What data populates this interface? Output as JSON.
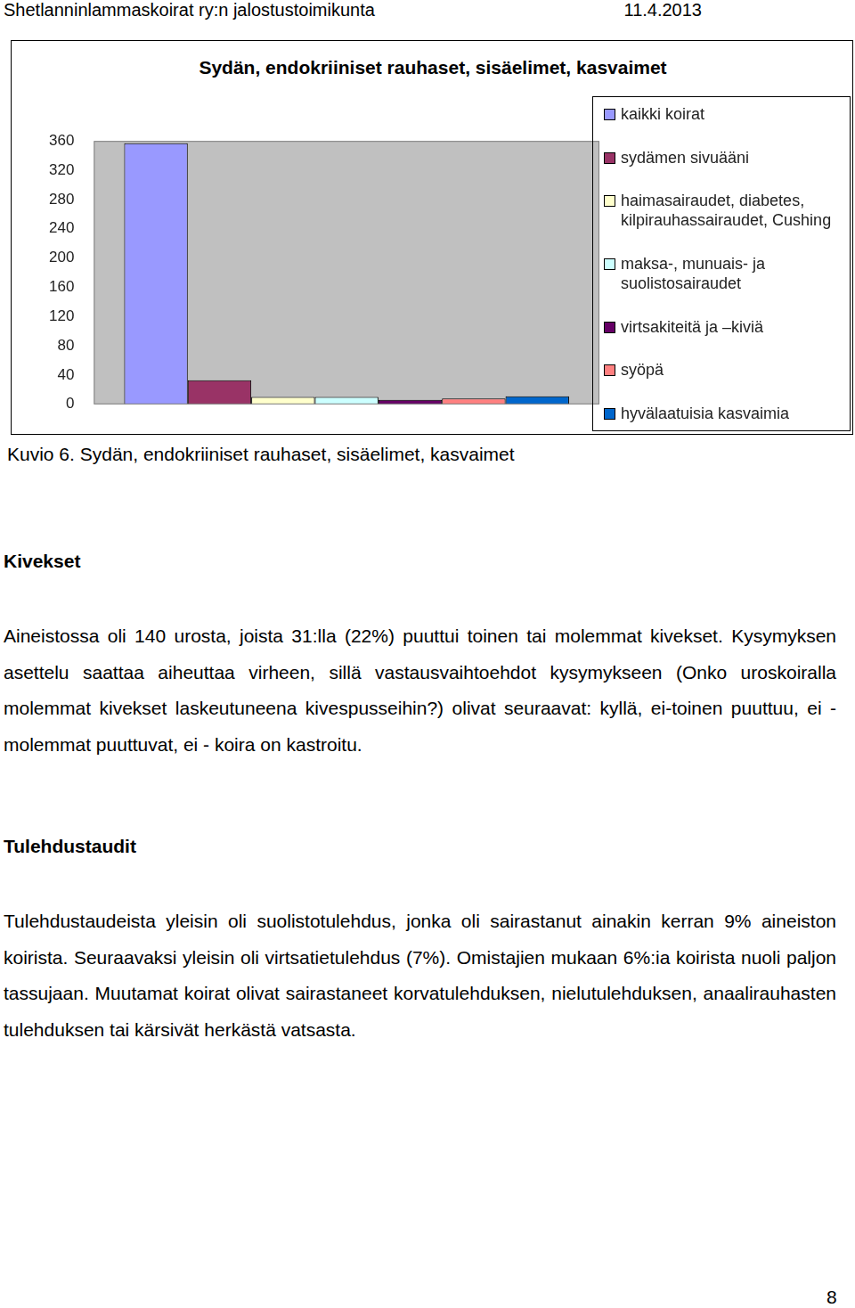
{
  "header": {
    "left": "Shetlanninlammaskoirat ry:n jalostustoimikunta",
    "right": "11.4.2013"
  },
  "chart_data": {
    "type": "bar",
    "title": "Sydän, endokriiniset rauhaset, sisäelimet, kasvaimet",
    "categories": [
      null
    ],
    "series": [
      {
        "name": "kaikki koirat",
        "color": "#9999ff",
        "values": [
          357
        ]
      },
      {
        "name": "sydämen sivuääni",
        "color": "#993366",
        "values": [
          33
        ]
      },
      {
        "name": "haimasairaudet, diabetes, kilpirauhassairaudet, Cushing",
        "color": "#ffffcc",
        "values": [
          10
        ]
      },
      {
        "name": "maksa-, munuais- ja suolistosairaudet",
        "color": "#ccffff",
        "values": [
          10
        ]
      },
      {
        "name": "virtsakiteitä ja –kiviä",
        "color": "#660066",
        "values": [
          6
        ]
      },
      {
        "name": "syöpä",
        "color": "#ff8080",
        "values": [
          8
        ]
      },
      {
        "name": "hyvälaatuisia kasvaimia",
        "color": "#0066cc",
        "values": [
          11
        ]
      }
    ],
    "ylim": [
      0,
      360
    ],
    "yticks": [
      0,
      40,
      80,
      120,
      160,
      200,
      240,
      280,
      320,
      360
    ],
    "grid": false,
    "legend": "right",
    "tick_labels": "y"
  },
  "caption": "Kuvio 6. Sydän, endokriiniset rauhaset, sisäelimet, kasvaimet",
  "sections": [
    {
      "heading": "Kivekset",
      "paragraphs": [
        "Aineistossa oli 140 urosta, joista 31:lla (22%) puuttui toinen tai molemmat kivekset. Kysymyksen asettelu saattaa aiheuttaa virheen, sillä vastausvaihtoehdot kysymykseen (Onko uroskoiralla molemmat kivekset laskeutuneena kivespusseihin?) olivat seuraavat: kyllä, ei-toinen puuttuu, ei - molemmat puuttuvat, ei - koira on kastroitu."
      ]
    },
    {
      "heading": "Tulehdustaudit",
      "paragraphs": [
        "Tulehdustaudeista yleisin oli suolistotulehdus, jonka oli sairastanut ainakin kerran 9% aineiston koirista. Seuraavaksi yleisin oli virtsatietulehdus (7%). Omistajien mukaan 6%:ia koirista nuoli paljon tassujaan. Muutamat koirat olivat sairastaneet korvatulehduksen, nielutulehduksen, anaalirauhasten tulehduksen tai kärsivät herkästä vatsasta."
      ]
    }
  ],
  "page_number": "8"
}
